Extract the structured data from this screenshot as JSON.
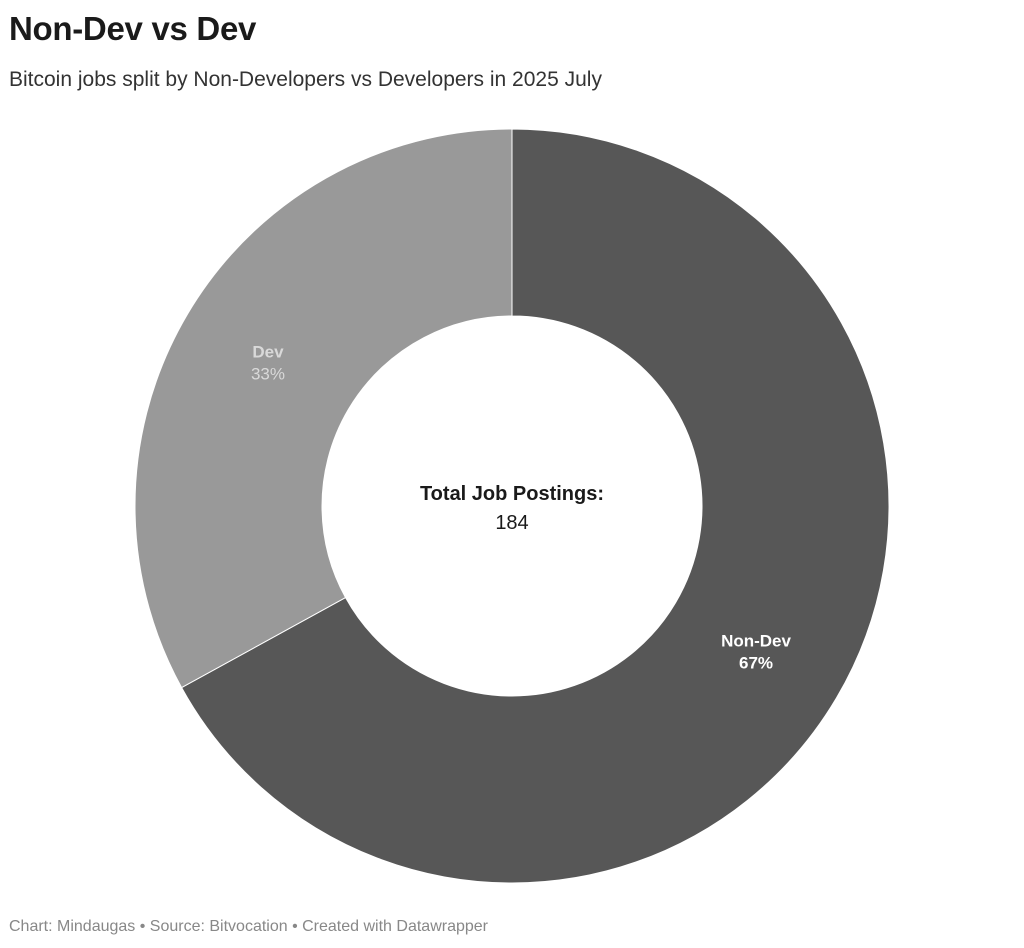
{
  "chart_data": {
    "type": "pie",
    "variant": "donut",
    "title": "Non-Dev vs Dev",
    "subtitle": "Bitcoin jobs split by Non-Developers vs Developers in 2025 July",
    "center_label": {
      "title": "Total Job Postings:",
      "value": "184"
    },
    "slices": [
      {
        "name": "Non-Dev",
        "value": 67,
        "label": "67%",
        "color": "#575757",
        "label_color": "#ffffff"
      },
      {
        "name": "Dev",
        "value": 33,
        "label": "33%",
        "color": "#999999",
        "label_color": "#d9d9d9"
      }
    ],
    "footer": "Chart: Mindaugas • Source: Bitvocation • Created with Datawrapper"
  }
}
